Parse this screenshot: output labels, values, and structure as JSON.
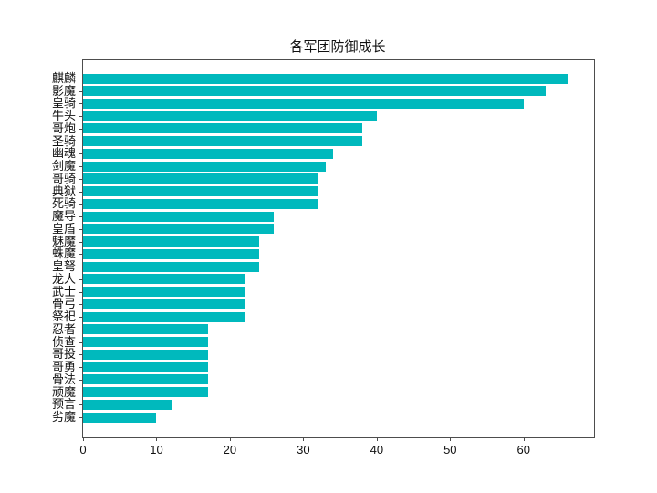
{
  "chart_data": {
    "type": "bar",
    "orientation": "horizontal",
    "title": "各军团防御成长",
    "xlabel": "",
    "ylabel": "",
    "categories": [
      "麒麟",
      "影魔",
      "皇骑",
      "牛头",
      "哥炮",
      "圣骑",
      "幽魂",
      "剑魔",
      "哥骑",
      "典狱",
      "死骑",
      "魔导",
      "皇盾",
      "魅魔",
      "蛛魔",
      "皇弩",
      "龙人",
      "武士",
      "骨弓",
      "祭祀",
      "忍者",
      "侦查",
      "哥投",
      "哥勇",
      "骨法",
      "顽魔",
      "预言",
      "劣魔"
    ],
    "values": [
      66,
      63,
      60,
      40,
      38,
      38,
      34,
      33,
      32,
      32,
      32,
      26,
      26,
      24,
      24,
      24,
      22,
      22,
      22,
      22,
      17,
      17,
      17,
      17,
      17,
      17,
      12,
      10
    ],
    "xlim": [
      0,
      69.6
    ],
    "x_ticks": [
      0,
      10,
      20,
      30,
      40,
      50,
      60
    ],
    "grid": false,
    "legend": null,
    "bar_color": "#00b9bd",
    "axis_color": "#4d4d4d",
    "text_color": "#111111"
  }
}
